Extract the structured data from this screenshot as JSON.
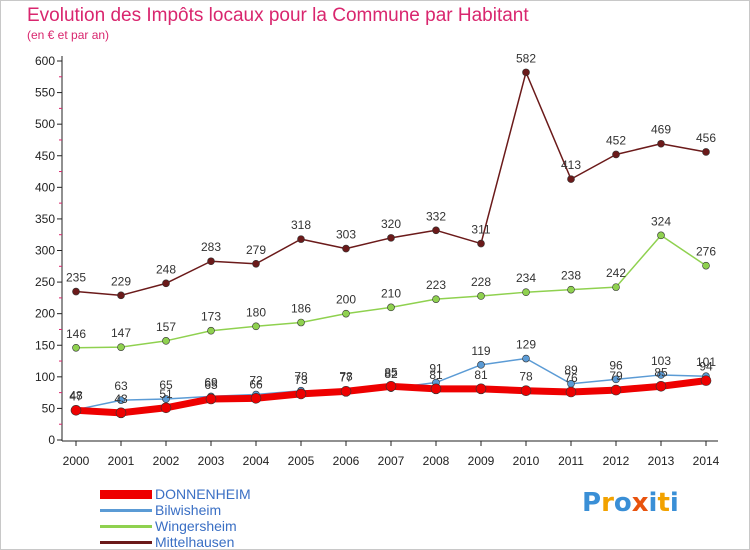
{
  "header": {
    "title": "Evolution des Impôts locaux pour la Commune par Habitant",
    "subtitle": "(en € et par an)"
  },
  "logo": {
    "letters": [
      "P",
      "r",
      "o",
      "x",
      "i",
      "t",
      "i"
    ],
    "colors": [
      "#3a8fd6",
      "#f2a200",
      "#3a8fd6",
      "#e8530e",
      "#3a8fd6",
      "#f2a200",
      "#3a8fd6"
    ]
  },
  "chart_data": {
    "type": "line",
    "title": "Evolution des Impôts locaux pour la Commune par Habitant",
    "subtitle": "(en € et par an)",
    "x": [
      "2000",
      "2001",
      "2002",
      "2003",
      "2004",
      "2005",
      "2006",
      "2007",
      "2008",
      "2009",
      "2010",
      "2011",
      "2012",
      "2013",
      "2014"
    ],
    "ylim": [
      0,
      600
    ],
    "yticks": [
      0,
      50,
      100,
      150,
      200,
      250,
      300,
      350,
      400,
      450,
      500,
      550,
      600
    ],
    "grid": false,
    "legend": "bottom-left",
    "series": [
      {
        "name": "Mittelhausen",
        "color": "#6b1a1a",
        "values": [
          235,
          229,
          248,
          283,
          279,
          318,
          303,
          320,
          332,
          311,
          582,
          413,
          452,
          469,
          456
        ]
      },
      {
        "name": "Wingersheim",
        "color": "#8fd14f",
        "values": [
          146,
          147,
          157,
          173,
          180,
          186,
          200,
          210,
          223,
          228,
          234,
          238,
          242,
          324,
          276
        ]
      },
      {
        "name": "Bilwisheim",
        "color": "#5b9bd5",
        "values": [
          48,
          63,
          65,
          69,
          72,
          78,
          78,
          82,
          91,
          119,
          129,
          89,
          96,
          103,
          101
        ]
      },
      {
        "name": "DONNENHEIM",
        "color": "#ee0000",
        "values": [
          47,
          43,
          51,
          65,
          66,
          73,
          77,
          85,
          81,
          81,
          78,
          76,
          79,
          85,
          94
        ]
      }
    ]
  }
}
